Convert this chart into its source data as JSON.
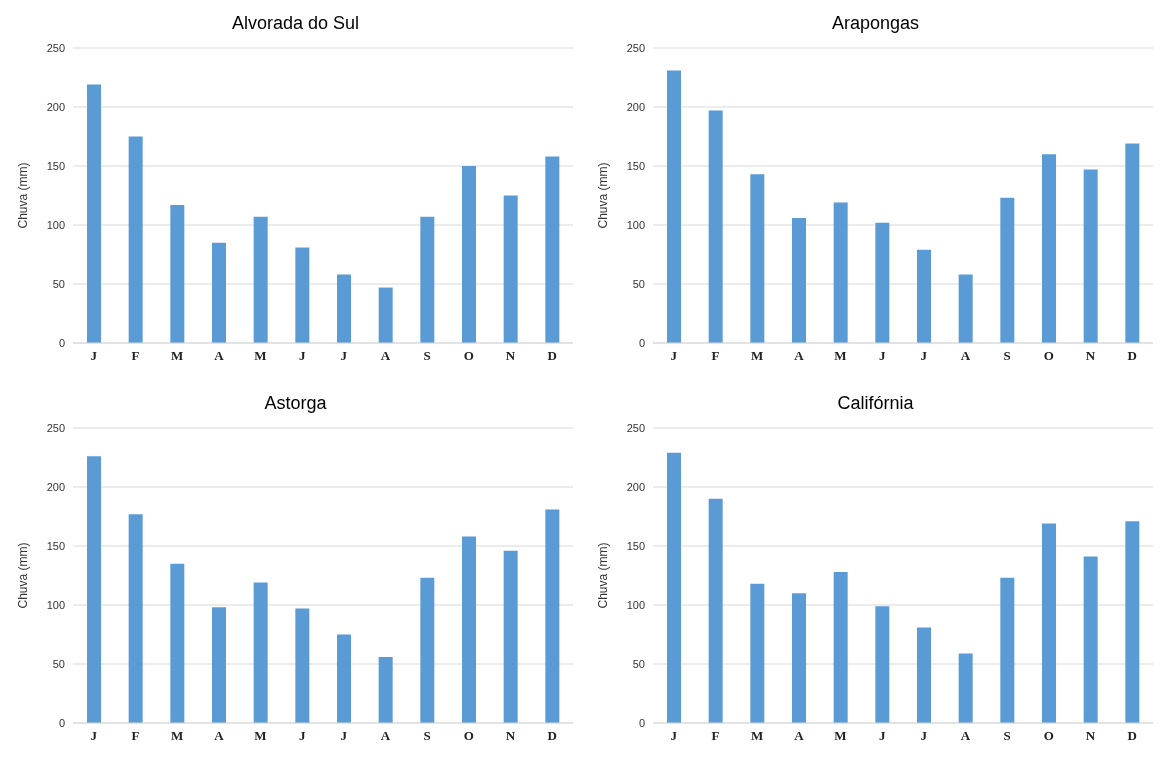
{
  "chart_data": [
    {
      "type": "bar",
      "title": "Alvorada do Sul",
      "ylabel": "Chuva (mm)",
      "categories": [
        "J",
        "F",
        "M",
        "A",
        "M",
        "J",
        "J",
        "A",
        "S",
        "O",
        "N",
        "D"
      ],
      "values": [
        219,
        175,
        117,
        85,
        107,
        81,
        58,
        47,
        107,
        150,
        125,
        158
      ],
      "color": "#5b9bd5",
      "ylim": [
        0,
        250
      ],
      "yticks": [
        0,
        50,
        100,
        150,
        200,
        250
      ],
      "grid": "y"
    },
    {
      "type": "bar",
      "title": "Arapongas",
      "ylabel": "Chuva (mm)",
      "categories": [
        "J",
        "F",
        "M",
        "A",
        "M",
        "J",
        "J",
        "A",
        "S",
        "O",
        "N",
        "D"
      ],
      "values": [
        231,
        197,
        143,
        106,
        119,
        102,
        79,
        58,
        123,
        160,
        147,
        169
      ],
      "color": "#5b9bd5",
      "ylim": [
        0,
        250
      ],
      "yticks": [
        0,
        50,
        100,
        150,
        200,
        250
      ],
      "grid": "y"
    },
    {
      "type": "bar",
      "title": "Astorga",
      "ylabel": "Chuva (mm)",
      "categories": [
        "J",
        "F",
        "M",
        "A",
        "M",
        "J",
        "J",
        "A",
        "S",
        "O",
        "N",
        "D"
      ],
      "values": [
        226,
        177,
        135,
        98,
        119,
        97,
        75,
        56,
        123,
        158,
        146,
        181
      ],
      "color": "#5b9bd5",
      "ylim": [
        0,
        250
      ],
      "yticks": [
        0,
        50,
        100,
        150,
        200,
        250
      ],
      "grid": "y"
    },
    {
      "type": "bar",
      "title": "Califórnia",
      "ylabel": "Chuva (mm)",
      "categories": [
        "J",
        "F",
        "M",
        "A",
        "M",
        "J",
        "J",
        "A",
        "S",
        "O",
        "N",
        "D"
      ],
      "values": [
        229,
        190,
        118,
        110,
        128,
        99,
        81,
        59,
        123,
        169,
        141,
        171
      ],
      "color": "#5b9bd5",
      "ylim": [
        0,
        250
      ],
      "yticks": [
        0,
        50,
        100,
        150,
        200,
        250
      ],
      "grid": "y"
    }
  ]
}
